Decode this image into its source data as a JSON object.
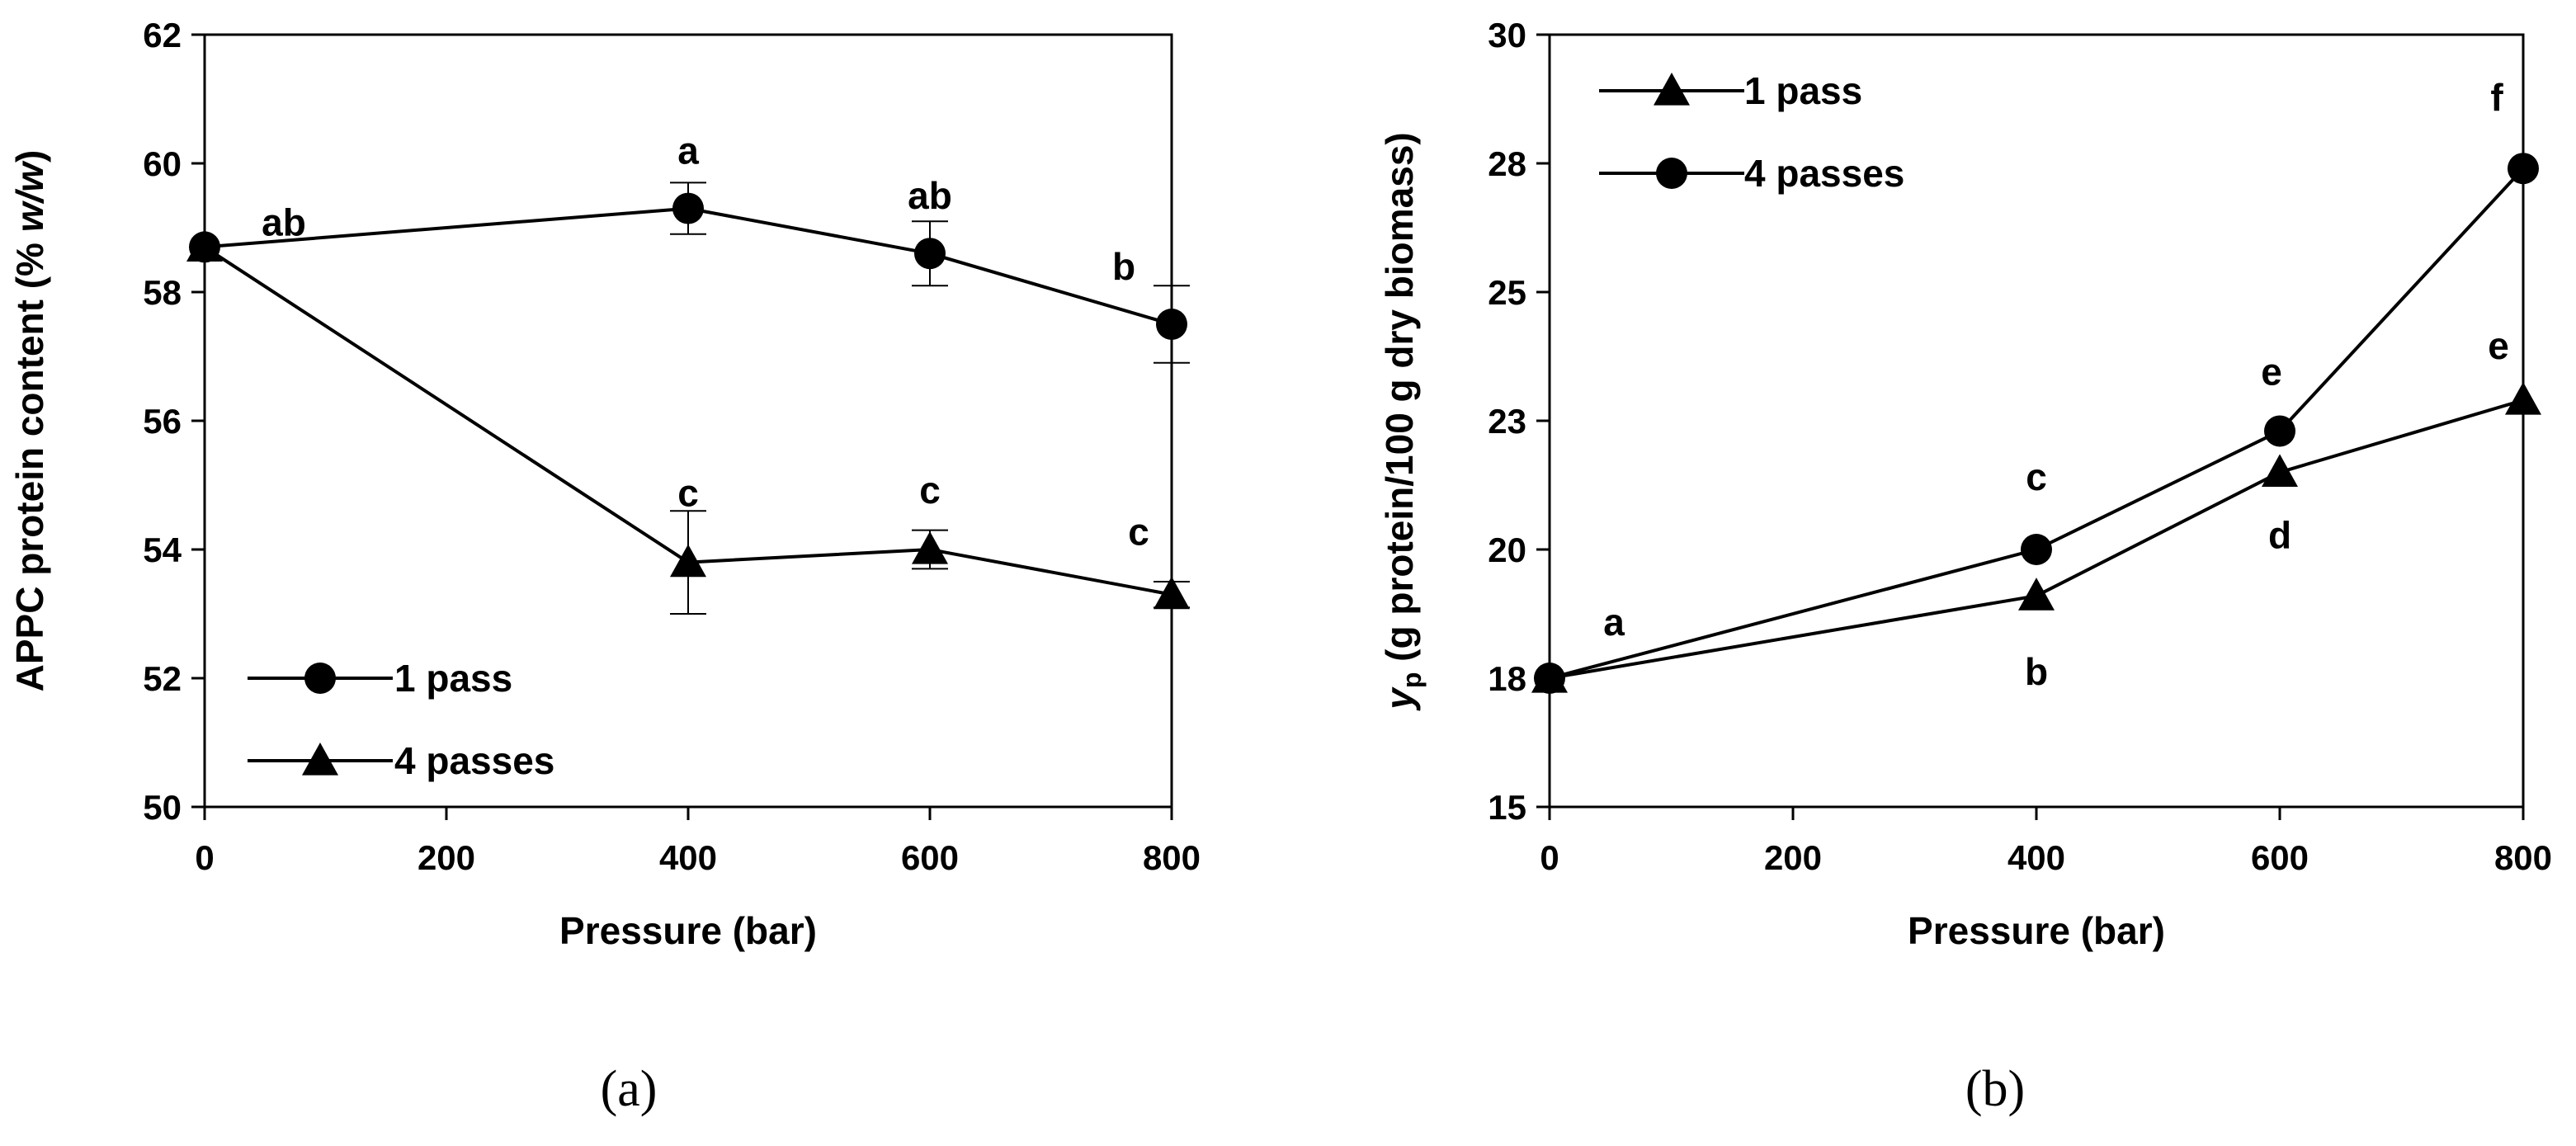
{
  "chart_data": [
    {
      "type": "line",
      "panel_label": "(a)",
      "xlabel": "Pressure (bar)",
      "ylabel": "APPC protein content (% w/w)",
      "ylabel_parts": [
        "APPC protein content (% ",
        "w/w",
        ")"
      ],
      "xlim": [
        0,
        800
      ],
      "ylim": [
        50,
        62
      ],
      "xticks": [
        0,
        200,
        400,
        600,
        800
      ],
      "xtick_labels": [
        "0",
        "200",
        "400",
        "600",
        "800"
      ],
      "yticks": [
        50,
        52,
        54,
        56,
        58,
        60,
        62
      ],
      "ytick_labels": [
        "50",
        "52",
        "54",
        "56",
        "58",
        "60",
        "62"
      ],
      "legend_position": "bottom-left",
      "series": [
        {
          "name": "1 pass",
          "marker": "circle",
          "x": [
            0,
            400,
            600,
            800
          ],
          "y": [
            58.7,
            59.3,
            58.6,
            57.5
          ],
          "err": [
            0.0,
            0.4,
            0.5,
            0.6
          ],
          "labels": [
            "ab",
            "a",
            "ab",
            "b"
          ]
        },
        {
          "name": "4 passes",
          "marker": "triangle",
          "x": [
            0,
            400,
            600,
            800
          ],
          "y": [
            58.7,
            53.8,
            54.0,
            53.3
          ],
          "err": [
            0.0,
            0.8,
            0.3,
            0.2
          ],
          "labels": [
            "",
            "c",
            "c",
            "c"
          ]
        }
      ]
    },
    {
      "type": "line",
      "panel_label": "(b)",
      "xlabel": "Pressure (bar)",
      "ylabel": "yp (g protein/100 g dry biomass)",
      "ylabel_parts": [
        "y",
        "p",
        "  (g protein/100 g dry biomass)"
      ],
      "xlim": [
        0,
        800
      ],
      "ylim": [
        15,
        30
      ],
      "xticks": [
        0,
        200,
        400,
        600,
        800
      ],
      "xtick_labels": [
        "0",
        "200",
        "400",
        "600",
        "800"
      ],
      "yticks": [
        15,
        17.5,
        20,
        22.5,
        25,
        27.5,
        30
      ],
      "ytick_labels": [
        "15",
        "18",
        "20",
        "23",
        "25",
        "28",
        "30"
      ],
      "legend_position": "top-left",
      "series": [
        {
          "name": "1 pass",
          "marker": "triangle",
          "x": [
            0,
            400,
            600,
            800
          ],
          "y": [
            17.5,
            19.1,
            21.5,
            22.9
          ],
          "labels": [
            "a",
            "b",
            "d",
            "e"
          ]
        },
        {
          "name": "4 passes",
          "marker": "circle",
          "x": [
            0,
            400,
            600,
            800
          ],
          "y": [
            17.5,
            20.0,
            22.3,
            27.4
          ],
          "labels": [
            "",
            "c",
            "e",
            "f"
          ]
        }
      ]
    }
  ]
}
